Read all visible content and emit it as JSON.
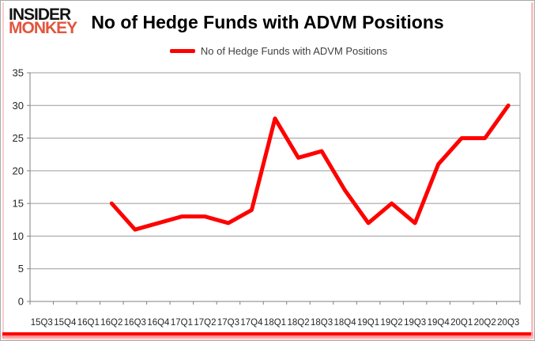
{
  "logo": {
    "line1": "INSIDER",
    "line2": "MONKEY"
  },
  "header": {
    "title": "No of Hedge Funds with ADVM Positions"
  },
  "legend": {
    "label": "No of Hedge Funds with ADVM Positions",
    "swatch_color": "#ff0000"
  },
  "colors": {
    "line": "#ff0000",
    "grid": "#9b9b9b",
    "axis": "#808080",
    "tick_text": "#262626",
    "title_text": "#000000",
    "logo_black": "#141414",
    "logo_red": "#e2553d",
    "bottom_bar": "#ff0000"
  },
  "chart_data": {
    "type": "line",
    "title": "No of Hedge Funds with ADVM Positions",
    "xlabel": "",
    "ylabel": "",
    "categories": [
      "15Q3",
      "15Q4",
      "16Q1",
      "16Q2",
      "16Q3",
      "16Q4",
      "17Q1",
      "17Q2",
      "17Q3",
      "17Q4",
      "18Q1",
      "18Q2",
      "18Q3",
      "18Q4",
      "19Q1",
      "19Q2",
      "19Q3",
      "19Q4",
      "20Q1",
      "20Q2",
      "20Q3"
    ],
    "series": [
      {
        "name": "No of Hedge Funds with ADVM Positions",
        "color": "#ff0000",
        "values": [
          null,
          null,
          null,
          15,
          11,
          12,
          13,
          13,
          12,
          14,
          28,
          22,
          23,
          17,
          12,
          15,
          12,
          21,
          25,
          25,
          30
        ]
      }
    ],
    "ylim": [
      0,
      35
    ],
    "ytick_interval": 5,
    "grid": true,
    "legend_position": "top-center"
  }
}
